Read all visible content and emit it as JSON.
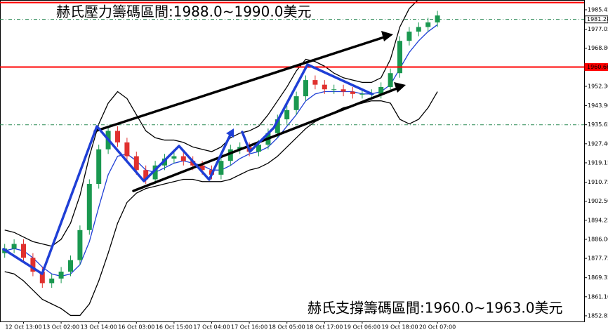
{
  "chart_data": {
    "type": "candlestick",
    "annotations": [
      "赫氏壓力籌碼區間:1988.0~1990.0美元",
      "赫氏支撐籌碼區間:1960.0~1963.0美元"
    ],
    "categories": [
      null,
      null,
      "12 Oct 13:00",
      null,
      null,
      null,
      "13 Oct 02:00",
      null,
      null,
      null,
      "13 Oct 14:00",
      null,
      null,
      null,
      "16 Oct 03:00",
      null,
      null,
      null,
      "16 Oct 15:00",
      null,
      null,
      null,
      "17 Oct 04:00",
      null,
      null,
      null,
      "17 Oct 16:00",
      null,
      null,
      null,
      "18 Oct 05:00",
      null,
      null,
      null,
      "18 Oct 17:00",
      null,
      null,
      null,
      "19 Oct 06:00",
      null,
      null,
      null,
      "19 Oct 18:00",
      null,
      null,
      null,
      "20 Oct 07:00"
    ],
    "open": [
      1880,
      1882,
      1884,
      1878,
      1872,
      1867,
      1869,
      1872,
      1877,
      1890,
      1910,
      1925,
      1933,
      1928,
      1922,
      1916,
      1912,
      1918,
      1921,
      1922,
      1920,
      1918,
      1916,
      1914,
      1920,
      1925,
      1926,
      1924,
      1927,
      1932,
      1938,
      1942,
      1948,
      1955,
      1953,
      1951,
      1951,
      1950,
      1949,
      1949,
      1949,
      1952,
      1958,
      1972,
      1976,
      1978,
      1980
    ],
    "high": [
      1884,
      1886,
      1886,
      1880,
      1874,
      1871,
      1874,
      1879,
      1892,
      1912,
      1927,
      1935,
      1935,
      1930,
      1924,
      1918,
      1920,
      1923,
      1924,
      1924,
      1922,
      1920,
      1918,
      1922,
      1927,
      1928,
      1928,
      1929,
      1934,
      1940,
      1944,
      1950,
      1957,
      1957,
      1955,
      1953,
      1953,
      1952,
      1951,
      1951,
      1954,
      1960,
      1974,
      1978,
      1980,
      1982,
      1985
    ],
    "low": [
      1878,
      1880,
      1876,
      1870,
      1865,
      1865,
      1867,
      1870,
      1875,
      1888,
      1908,
      1923,
      1926,
      1920,
      1914,
      1910,
      1910,
      1916,
      1919,
      1918,
      1916,
      1914,
      1912,
      1912,
      1918,
      1923,
      1922,
      1922,
      1925,
      1930,
      1936,
      1940,
      1946,
      1951,
      1949,
      1949,
      1948,
      1947,
      1947,
      1947,
      1947,
      1950,
      1956,
      1970,
      1974,
      1976,
      1978
    ],
    "close": [
      1882,
      1884,
      1878,
      1872,
      1867,
      1869,
      1872,
      1877,
      1890,
      1910,
      1925,
      1933,
      1928,
      1922,
      1916,
      1912,
      1918,
      1921,
      1922,
      1920,
      1918,
      1916,
      1914,
      1920,
      1925,
      1926,
      1924,
      1927,
      1932,
      1938,
      1942,
      1948,
      1955,
      1953,
      1951,
      1951,
      1950,
      1949,
      1949,
      1949,
      1952,
      1958,
      1972,
      1976,
      1978,
      1980,
      1983
    ],
    "up_color": "#1a9850",
    "down_color": "#e0302e",
    "overlays": [
      {
        "color": "#000000",
        "values": [
          1890,
          1889,
          1887,
          1885,
          1884,
          1883,
          1886,
          1893,
          1905,
          1922,
          1936,
          1945,
          1950,
          1947,
          1940,
          1933,
          1930,
          1929,
          1929,
          1928,
          1926,
          1925,
          1924,
          1926,
          1930,
          1932,
          1933,
          1935,
          1940,
          1946,
          1952,
          1959,
          1964,
          1963,
          1961,
          1958,
          1956,
          1955,
          1954,
          1954,
          1956,
          1964,
          1978,
          1986,
          1990,
          1992,
          1993
        ]
      },
      {
        "color": "#000000",
        "values": [
          1872,
          1871,
          1868,
          1864,
          1860,
          1858,
          1856,
          1853,
          1853,
          1858,
          1868,
          1880,
          1893,
          1902,
          1906,
          1908,
          1909,
          1910,
          1911,
          1912,
          1912,
          1911,
          1911,
          1911,
          1912,
          1914,
          1916,
          1917,
          1919,
          1922,
          1926,
          1930,
          1934,
          1937,
          1939,
          1941,
          1943,
          1944,
          1945,
          1946,
          1946,
          1945,
          1938,
          1936,
          1938,
          1943,
          1950
        ]
      },
      {
        "color": "#1f3fd6",
        "values": [
          1881,
          1882,
          1881,
          1878,
          1874,
          1871,
          1870,
          1871,
          1875,
          1885,
          1900,
          1914,
          1922,
          1923,
          1920,
          1916,
          1915,
          1917,
          1919,
          1920,
          1919,
          1918,
          1916,
          1916,
          1918,
          1921,
          1923,
          1924,
          1926,
          1930,
          1935,
          1940,
          1946,
          1949,
          1950,
          1950,
          1950,
          1950,
          1949,
          1949,
          1950,
          1953,
          1960,
          1967,
          1972,
          1976,
          1979
        ]
      }
    ],
    "levels": [
      {
        "value": 1988.6,
        "color": "#ff0000",
        "style": "solid",
        "labeled": false
      },
      {
        "value": 1981.28,
        "color": "#2e8b57",
        "style": "dashed",
        "labeled": true
      },
      {
        "value": 1960.66,
        "color": "#ff0000",
        "style": "solid",
        "labeled": true
      },
      {
        "value": 1935.65,
        "color": "#2e8b57",
        "style": "dashed",
        "labeled": false
      }
    ],
    "ylim": [
      1850.4,
      1989.7
    ],
    "yticks": [
      1985.45,
      1977.05,
      {
        "value": 1968.8,
        "label": "1968.80"
      },
      {
        "value": 1952.3,
        "label": "1952.30"
      },
      {
        "value": 1943.9,
        "label": "1943.90"
      },
      1935.65,
      {
        "value": 1927.4,
        "label": "1927.40"
      },
      1919.15,
      1910.75,
      {
        "value": 1902.5,
        "label": "1902.50"
      },
      1894.25,
      {
        "value": 1886,
        "label": "1886.00"
      },
      1877.75,
      1869.35,
      {
        "value": 1861.1,
        "label": "1861.10"
      },
      1852.85
    ]
  }
}
